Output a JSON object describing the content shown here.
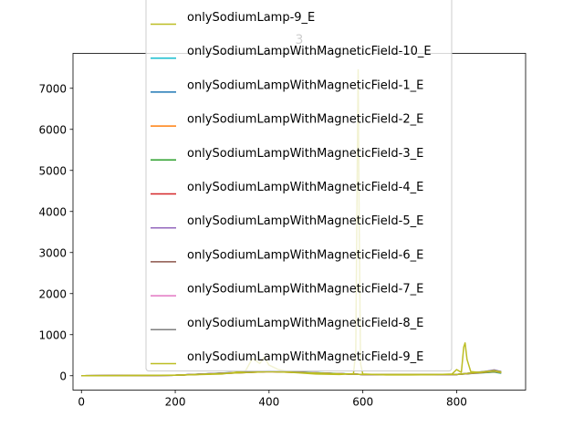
{
  "chart_data": {
    "type": "line",
    "title": "3",
    "xlabel": "",
    "ylabel": "",
    "xlim": [
      -18,
      947
    ],
    "ylim": [
      -350,
      7850
    ],
    "xticks": [
      0,
      200,
      400,
      600,
      800
    ],
    "yticks": [
      0,
      1000,
      2000,
      3000,
      4000,
      5000,
      6000,
      7000
    ],
    "grid": false,
    "legend_placement": "upper center",
    "series": [
      {
        "name": "onlySodiumLamp-9_E",
        "color": "#bcbd22",
        "x": [
          0,
          100,
          200,
          300,
          350,
          360,
          365,
          370,
          380,
          390,
          400,
          420,
          450,
          500,
          550,
          580,
          585,
          588,
          590,
          592,
          595,
          600,
          650,
          700,
          750,
          790,
          800,
          810,
          815,
          818,
          822,
          830,
          850,
          880,
          895
        ],
        "y": [
          0,
          5,
          15,
          40,
          120,
          330,
          420,
          380,
          300,
          450,
          260,
          150,
          80,
          40,
          30,
          50,
          600,
          5000,
          7450,
          4000,
          300,
          40,
          20,
          20,
          25,
          40,
          150,
          80,
          700,
          800,
          400,
          100,
          80,
          120,
          80
        ]
      },
      {
        "name": "onlySodiumLampWithMagneticField-10_E",
        "color": "#17becf",
        "x": [
          0,
          200,
          400,
          600,
          800,
          880,
          895
        ],
        "y": [
          0,
          10,
          120,
          30,
          30,
          90,
          60
        ]
      },
      {
        "name": "onlySodiumLampWithMagneticField-1_E",
        "color": "#1f77b4",
        "x": [
          0,
          200,
          400,
          600,
          800,
          880,
          895
        ],
        "y": [
          0,
          10,
          110,
          30,
          30,
          110,
          80
        ]
      },
      {
        "name": "onlySodiumLampWithMagneticField-2_E",
        "color": "#ff7f0e",
        "x": [
          0,
          200,
          400,
          600,
          800,
          880,
          895
        ],
        "y": [
          0,
          10,
          100,
          30,
          30,
          95,
          70
        ]
      },
      {
        "name": "onlySodiumLampWithMagneticField-3_E",
        "color": "#2ca02c",
        "x": [
          0,
          200,
          400,
          600,
          800,
          880,
          895
        ],
        "y": [
          0,
          10,
          105,
          30,
          30,
          100,
          75
        ]
      },
      {
        "name": "onlySodiumLampWithMagneticField-4_E",
        "color": "#d62728",
        "x": [
          0,
          200,
          400,
          600,
          800,
          860,
          880,
          895
        ],
        "y": [
          0,
          10,
          115,
          30,
          30,
          90,
          130,
          90
        ]
      },
      {
        "name": "onlySodiumLampWithMagneticField-5_E",
        "color": "#9467bd",
        "x": [
          0,
          200,
          400,
          600,
          800,
          860,
          880,
          895
        ],
        "y": [
          0,
          10,
          110,
          30,
          30,
          100,
          140,
          100
        ]
      },
      {
        "name": "onlySodiumLampWithMagneticField-6_E",
        "color": "#8c564b",
        "x": [
          0,
          200,
          400,
          600,
          800,
          880,
          895
        ],
        "y": [
          0,
          10,
          100,
          30,
          30,
          120,
          90
        ]
      },
      {
        "name": "onlySodiumLampWithMagneticField-7_E",
        "color": "#e377c2",
        "x": [
          0,
          200,
          400,
          600,
          800,
          880,
          895
        ],
        "y": [
          0,
          10,
          105,
          30,
          30,
          110,
          80
        ]
      },
      {
        "name": "onlySodiumLampWithMagneticField-8_E",
        "color": "#7f7f7f",
        "x": [
          0,
          200,
          400,
          600,
          800,
          880,
          895
        ],
        "y": [
          0,
          10,
          110,
          30,
          30,
          130,
          100
        ]
      },
      {
        "name": "onlySodiumLampWithMagneticField-9_E",
        "color": "#bcbd22",
        "x": [
          0,
          200,
          400,
          600,
          800,
          880,
          895
        ],
        "y": [
          0,
          10,
          100,
          30,
          30,
          120,
          90
        ]
      }
    ]
  }
}
